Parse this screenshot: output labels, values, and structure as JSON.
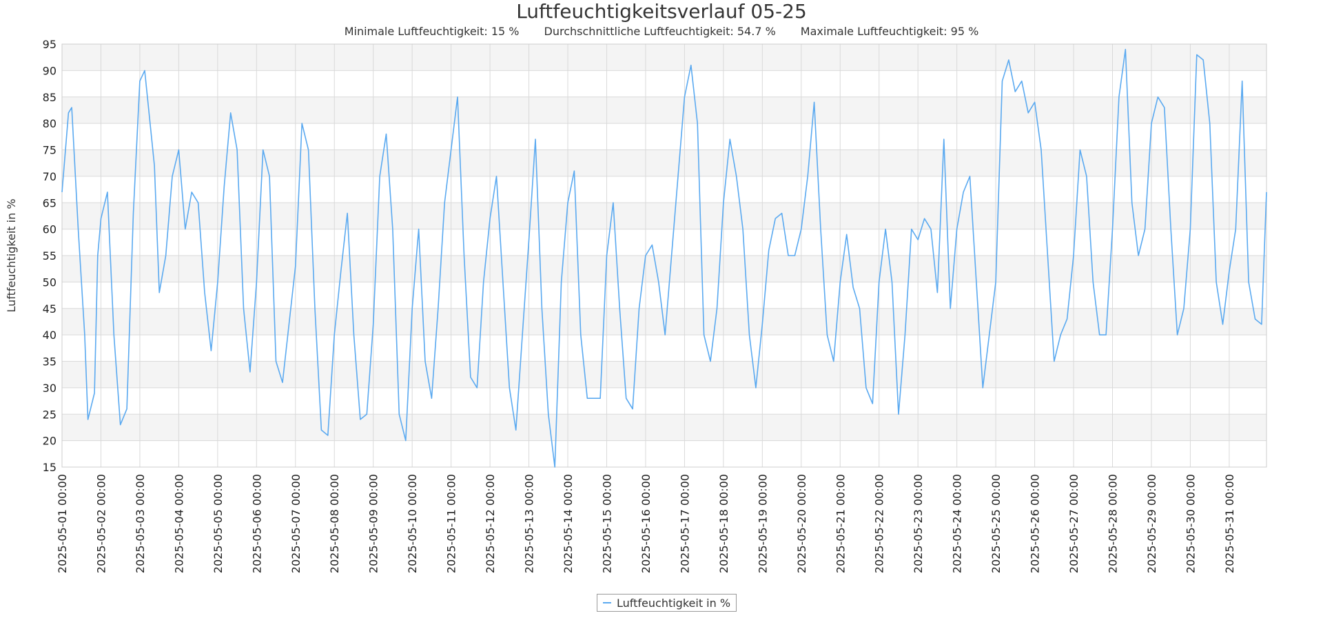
{
  "chart_data": {
    "type": "line",
    "title": "Luftfeuchtigkeitsverlauf 05-25",
    "stats": [
      {
        "label": "Minimale Luftfeuchtigkeit:",
        "value": "15 %"
      },
      {
        "label": "Durchschnittliche Luftfeuchtigkeit:",
        "value": "54.7 %"
      },
      {
        "label": "Maximale Luftfeuchtigkeit:",
        "value": "95 %"
      }
    ],
    "ylabel": "Luftfeuchtigkeit in %",
    "xlabel": "",
    "ylim": [
      15,
      95
    ],
    "yticks": [
      15,
      20,
      25,
      30,
      35,
      40,
      45,
      50,
      55,
      60,
      65,
      70,
      75,
      80,
      85,
      90,
      95
    ],
    "xlim": [
      "2025-05-01 00:00",
      "2025-05-31 23:00"
    ],
    "xticks": [
      "2025-05-01 00:00",
      "2025-05-02 00:00",
      "2025-05-03 00:00",
      "2025-05-04 00:00",
      "2025-05-05 00:00",
      "2025-05-06 00:00",
      "2025-05-07 00:00",
      "2025-05-08 00:00",
      "2025-05-09 00:00",
      "2025-05-10 00:00",
      "2025-05-11 00:00",
      "2025-05-12 00:00",
      "2025-05-13 00:00",
      "2025-05-14 00:00",
      "2025-05-15 00:00",
      "2025-05-16 00:00",
      "2025-05-17 00:00",
      "2025-05-18 00:00",
      "2025-05-19 00:00",
      "2025-05-20 00:00",
      "2025-05-21 00:00",
      "2025-05-22 00:00",
      "2025-05-23 00:00",
      "2025-05-24 00:00",
      "2025-05-25 00:00",
      "2025-05-26 00:00",
      "2025-05-27 00:00",
      "2025-05-28 00:00",
      "2025-05-29 00:00",
      "2025-05-30 00:00",
      "2025-05-31 00:00"
    ],
    "grid": true,
    "legend_position": "bottom-center",
    "line_color": "#5aa9f0",
    "band_color": "#f4f4f4",
    "grid_color": "#d9d9d9",
    "series": [
      {
        "name": "Luftfeuchtigkeit in %",
        "x": [
          "2025-05-01 00:00",
          "2025-05-01 04:00",
          "2025-05-01 06:00",
          "2025-05-01 10:00",
          "2025-05-01 14:00",
          "2025-05-01 16:00",
          "2025-05-01 20:00",
          "2025-05-01 22:00",
          "2025-05-02 00:00",
          "2025-05-02 04:00",
          "2025-05-02 08:00",
          "2025-05-02 12:00",
          "2025-05-02 16:00",
          "2025-05-02 20:00",
          "2025-05-03 00:00",
          "2025-05-03 03:00",
          "2025-05-03 09:00",
          "2025-05-03 12:00",
          "2025-05-03 16:00",
          "2025-05-03 20:00",
          "2025-05-04 00:00",
          "2025-05-04 04:00",
          "2025-05-04 08:00",
          "2025-05-04 12:00",
          "2025-05-04 16:00",
          "2025-05-04 20:00",
          "2025-05-05 00:00",
          "2025-05-05 04:00",
          "2025-05-05 08:00",
          "2025-05-05 12:00",
          "2025-05-05 16:00",
          "2025-05-05 20:00",
          "2025-05-06 00:00",
          "2025-05-06 04:00",
          "2025-05-06 08:00",
          "2025-05-06 12:00",
          "2025-05-06 16:00",
          "2025-05-06 20:00",
          "2025-05-07 00:00",
          "2025-05-07 04:00",
          "2025-05-07 08:00",
          "2025-05-07 12:00",
          "2025-05-07 16:00",
          "2025-05-07 20:00",
          "2025-05-08 00:00",
          "2025-05-08 04:00",
          "2025-05-08 08:00",
          "2025-05-08 12:00",
          "2025-05-08 16:00",
          "2025-05-08 20:00",
          "2025-05-09 00:00",
          "2025-05-09 04:00",
          "2025-05-09 08:00",
          "2025-05-09 12:00",
          "2025-05-09 16:00",
          "2025-05-09 20:00",
          "2025-05-10 00:00",
          "2025-05-10 04:00",
          "2025-05-10 08:00",
          "2025-05-10 12:00",
          "2025-05-10 16:00",
          "2025-05-10 20:00",
          "2025-05-11 00:00",
          "2025-05-11 04:00",
          "2025-05-11 08:00",
          "2025-05-11 12:00",
          "2025-05-11 16:00",
          "2025-05-11 20:00",
          "2025-05-12 00:00",
          "2025-05-12 04:00",
          "2025-05-12 08:00",
          "2025-05-12 12:00",
          "2025-05-12 16:00",
          "2025-05-12 20:00",
          "2025-05-13 00:00",
          "2025-05-13 04:00",
          "2025-05-13 08:00",
          "2025-05-13 12:00",
          "2025-05-13 16:00",
          "2025-05-13 20:00",
          "2025-05-14 00:00",
          "2025-05-14 04:00",
          "2025-05-14 08:00",
          "2025-05-14 12:00",
          "2025-05-14 16:00",
          "2025-05-14 20:00",
          "2025-05-15 00:00",
          "2025-05-15 04:00",
          "2025-05-15 08:00",
          "2025-05-15 12:00",
          "2025-05-15 16:00",
          "2025-05-15 20:00",
          "2025-05-16 00:00",
          "2025-05-16 04:00",
          "2025-05-16 08:00",
          "2025-05-16 12:00",
          "2025-05-16 16:00",
          "2025-05-16 20:00",
          "2025-05-17 00:00",
          "2025-05-17 04:00",
          "2025-05-17 08:00",
          "2025-05-17 12:00",
          "2025-05-17 16:00",
          "2025-05-17 20:00",
          "2025-05-18 00:00",
          "2025-05-18 04:00",
          "2025-05-18 08:00",
          "2025-05-18 12:00",
          "2025-05-18 16:00",
          "2025-05-18 20:00",
          "2025-05-19 00:00",
          "2025-05-19 04:00",
          "2025-05-19 08:00",
          "2025-05-19 12:00",
          "2025-05-19 16:00",
          "2025-05-19 20:00",
          "2025-05-20 00:00",
          "2025-05-20 04:00",
          "2025-05-20 08:00",
          "2025-05-20 12:00",
          "2025-05-20 16:00",
          "2025-05-20 20:00",
          "2025-05-21 00:00",
          "2025-05-21 04:00",
          "2025-05-21 08:00",
          "2025-05-21 12:00",
          "2025-05-21 16:00",
          "2025-05-21 20:00",
          "2025-05-22 00:00",
          "2025-05-22 04:00",
          "2025-05-22 08:00",
          "2025-05-22 12:00",
          "2025-05-22 16:00",
          "2025-05-22 20:00",
          "2025-05-23 00:00",
          "2025-05-23 04:00",
          "2025-05-23 08:00",
          "2025-05-23 12:00",
          "2025-05-23 16:00",
          "2025-05-23 20:00",
          "2025-05-24 00:00",
          "2025-05-24 04:00",
          "2025-05-24 08:00",
          "2025-05-24 12:00",
          "2025-05-24 16:00",
          "2025-05-24 20:00",
          "2025-05-25 00:00",
          "2025-05-25 04:00",
          "2025-05-25 08:00",
          "2025-05-25 12:00",
          "2025-05-25 16:00",
          "2025-05-25 20:00",
          "2025-05-26 00:00",
          "2025-05-26 04:00",
          "2025-05-26 08:00",
          "2025-05-26 12:00",
          "2025-05-26 16:00",
          "2025-05-26 20:00",
          "2025-05-27 00:00",
          "2025-05-27 04:00",
          "2025-05-27 08:00",
          "2025-05-27 12:00",
          "2025-05-27 16:00",
          "2025-05-27 20:00",
          "2025-05-28 00:00",
          "2025-05-28 04:00",
          "2025-05-28 08:00",
          "2025-05-28 12:00",
          "2025-05-28 16:00",
          "2025-05-28 20:00",
          "2025-05-29 00:00",
          "2025-05-29 04:00",
          "2025-05-29 08:00",
          "2025-05-29 12:00",
          "2025-05-29 16:00",
          "2025-05-29 20:00",
          "2025-05-30 00:00",
          "2025-05-30 04:00",
          "2025-05-30 08:00",
          "2025-05-30 12:00",
          "2025-05-30 16:00",
          "2025-05-30 20:00",
          "2025-05-31 00:00",
          "2025-05-31 04:00",
          "2025-05-31 08:00",
          "2025-05-31 12:00",
          "2025-05-31 16:00",
          "2025-05-31 20:00",
          "2025-05-31 23:00"
        ],
        "values": [
          67,
          82,
          83,
          60,
          40,
          24,
          29,
          55,
          62,
          67,
          40,
          23,
          26,
          63,
          88,
          90,
          72,
          48,
          55,
          70,
          75,
          60,
          67,
          65,
          48,
          37,
          50,
          68,
          82,
          75,
          45,
          33,
          50,
          75,
          70,
          35,
          31,
          42,
          53,
          80,
          75,
          45,
          22,
          21,
          40,
          52,
          63,
          40,
          24,
          25,
          42,
          70,
          78,
          60,
          25,
          20,
          45,
          60,
          35,
          28,
          45,
          65,
          75,
          85,
          55,
          32,
          30,
          50,
          62,
          70,
          50,
          30,
          22,
          40,
          58,
          77,
          45,
          25,
          15,
          50,
          65,
          71,
          40,
          28,
          28,
          28,
          55,
          65,
          45,
          28,
          26,
          45,
          55,
          57,
          50,
          40,
          55,
          70,
          85,
          91,
          80,
          40,
          35,
          45,
          65,
          77,
          70,
          60,
          40,
          30,
          42,
          56,
          62,
          63,
          55,
          55,
          60,
          70,
          84,
          60,
          40,
          35,
          50,
          59,
          49,
          45,
          30,
          27,
          50,
          60,
          50,
          25,
          40,
          60,
          58,
          62,
          60,
          48,
          77,
          45,
          60,
          67,
          70,
          50,
          30,
          40,
          50,
          88,
          92,
          86,
          88,
          82,
          84,
          75,
          55,
          35,
          40,
          43,
          55,
          75,
          70,
          50,
          40,
          40,
          60,
          85,
          94,
          65,
          55,
          60,
          80,
          85,
          83,
          60,
          40,
          45,
          60,
          93,
          92,
          80,
          50,
          42,
          52,
          60,
          88,
          50,
          43,
          42,
          67
        ]
      }
    ]
  }
}
